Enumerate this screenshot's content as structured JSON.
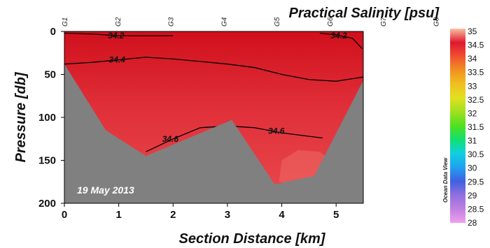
{
  "chart_data": {
    "type": "heatmap",
    "title": "Practical Salinity [psu]",
    "xlabel": "Section Distance [km]",
    "ylabel": "Pressure [db]",
    "xlim": [
      0,
      5.5
    ],
    "ylim": [
      0,
      200
    ],
    "y_inverted": true,
    "x_ticks": [
      "0",
      "1",
      "2",
      "3",
      "4",
      "5"
    ],
    "x_tick_values": [
      0,
      1,
      2,
      3,
      4,
      5
    ],
    "y_ticks": [
      "0",
      "50",
      "100",
      "150",
      "200"
    ],
    "y_tick_values": [
      0,
      50,
      100,
      150,
      200
    ],
    "stations": [
      {
        "name": "G1",
        "x": 0.0
      },
      {
        "name": "G2",
        "x": 0.97
      },
      {
        "name": "G3",
        "x": 1.93
      },
      {
        "name": "G4",
        "x": 2.9
      },
      {
        "name": "G5",
        "x": 3.86
      },
      {
        "name": "G6",
        "x": 4.83
      },
      {
        "name": "G7",
        "x": 5.79
      },
      {
        "name": "G8",
        "x": 6.76
      }
    ],
    "bottom_topography": [
      {
        "x": 0.0,
        "y": 38
      },
      {
        "x": 0.76,
        "y": 115
      },
      {
        "x": 1.5,
        "y": 145
      },
      {
        "x": 3.08,
        "y": 103
      },
      {
        "x": 3.87,
        "y": 178
      },
      {
        "x": 4.6,
        "y": 168
      },
      {
        "x": 5.5,
        "y": 57
      }
    ],
    "contours": [
      {
        "label": "34.2",
        "label_x": 0.95,
        "label_y": 5,
        "path": [
          [
            0,
            2
          ],
          [
            0.5,
            3
          ],
          [
            1.0,
            5
          ],
          [
            1.5,
            5
          ],
          [
            2,
            5
          ]
        ]
      },
      {
        "label": "34.2",
        "label_x": 5.05,
        "label_y": 5,
        "path": [
          [
            4.7,
            2
          ],
          [
            5.0,
            4
          ],
          [
            5.3,
            8
          ],
          [
            5.48,
            20
          ]
        ]
      },
      {
        "label": "34.4",
        "label_x": 0.97,
        "label_y": 33,
        "path": [
          [
            0,
            38
          ],
          [
            0.5,
            36
          ],
          [
            1.0,
            33
          ],
          [
            1.5,
            30
          ],
          [
            2,
            32
          ],
          [
            2.5,
            35
          ],
          [
            3.0,
            38
          ],
          [
            3.5,
            42
          ],
          [
            4.0,
            50
          ],
          [
            4.5,
            56
          ],
          [
            5.0,
            58
          ],
          [
            5.5,
            53
          ]
        ]
      },
      {
        "label": "34.6",
        "label_x": 1.95,
        "label_y": 125,
        "path": [
          [
            1.5,
            140
          ],
          [
            2,
            125
          ],
          [
            2.5,
            112
          ],
          [
            3.0,
            110
          ],
          [
            3.5,
            112
          ],
          [
            4.0,
            118
          ],
          [
            4.5,
            122
          ],
          [
            4.75,
            124
          ]
        ]
      },
      {
        "label": "34.6",
        "label_x": 3.9,
        "label_y": 116,
        "path": []
      }
    ],
    "colorbar": {
      "ticks": [
        "35",
        "34.5",
        "34",
        "33.5",
        "33",
        "32.5",
        "32",
        "31.5",
        "31",
        "30.5",
        "30",
        "29.5",
        "29",
        "28.5",
        "28"
      ],
      "min": 28,
      "max": 35,
      "stops": [
        {
          "v": 28,
          "color": "#f0a0f0"
        },
        {
          "v": 28.5,
          "color": "#c080e0"
        },
        {
          "v": 29,
          "color": "#9070e0"
        },
        {
          "v": 29.5,
          "color": "#4060e0"
        },
        {
          "v": 30,
          "color": "#20a0f0"
        },
        {
          "v": 30.5,
          "color": "#10d0e0"
        },
        {
          "v": 31,
          "color": "#10e070"
        },
        {
          "v": 31.5,
          "color": "#50e020"
        },
        {
          "v": 32,
          "color": "#a0e020"
        },
        {
          "v": 32.5,
          "color": "#e0e020"
        },
        {
          "v": 33,
          "color": "#f0c020"
        },
        {
          "v": 33.5,
          "color": "#f09020"
        },
        {
          "v": 34,
          "color": "#f05030"
        },
        {
          "v": 34.5,
          "color": "#e01830"
        },
        {
          "v": 35,
          "color": "#f8c0a0"
        }
      ]
    },
    "colors": {
      "field_top": "#d0101c",
      "field_mid": "#e0303a",
      "field_bottom": "#e9484c",
      "topography": "#808080"
    },
    "watermark": "Ocean Data View",
    "date_annotation": "19 May 2013"
  }
}
